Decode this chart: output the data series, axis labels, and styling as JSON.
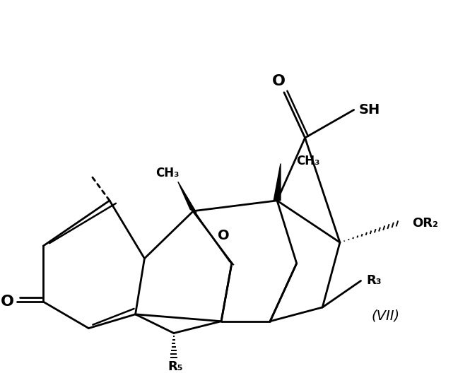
{
  "background_color": "#ffffff",
  "line_color": "#000000",
  "lw": 2.0,
  "label_O_ketone": "O",
  "label_SH": "SH",
  "label_CH3_left": "CH₃",
  "label_CH3_right": "CH₃",
  "label_O_epoxide": "O",
  "label_OR2": "OR₂",
  "label_R3": "R₃",
  "label_R5": "R₅",
  "label_VII": "(VII)"
}
